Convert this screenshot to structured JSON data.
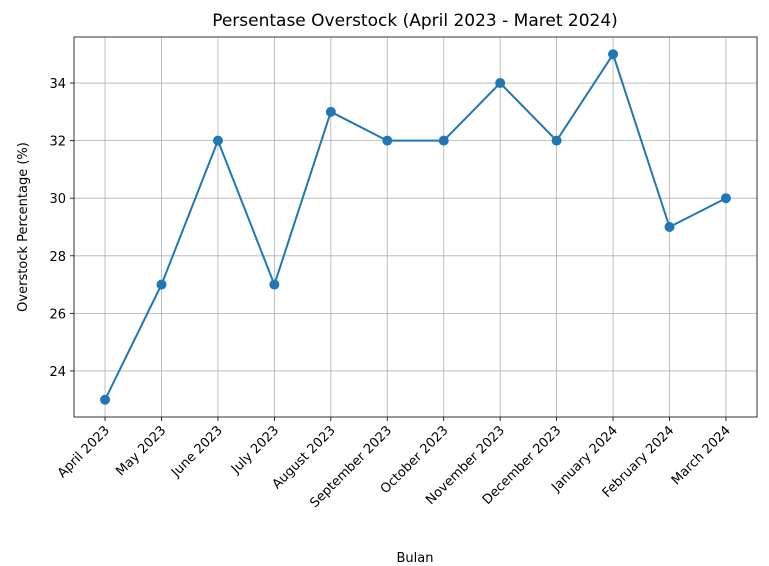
{
  "chart_data": {
    "type": "line",
    "title": "Persentase Overstock (April 2023 - Maret 2024)",
    "x_label": "Bulan",
    "y_label": "Overstock Percentage (%)",
    "categories": [
      "April 2023",
      "May 2023",
      "June 2023",
      "July 2023",
      "August 2023",
      "September 2023",
      "October 2023",
      "November 2023",
      "December 2023",
      "January 2024",
      "February 2024",
      "March 2024"
    ],
    "series": [
      {
        "name": "Overstock",
        "color": "#1f77b4",
        "values": [
          23,
          27,
          32,
          27,
          33,
          32,
          32,
          34,
          32,
          35,
          29,
          30
        ]
      }
    ],
    "ylim": [
      22.4,
      35.6
    ],
    "yticks": [
      24,
      26,
      28,
      30,
      32,
      34
    ],
    "grid": true
  }
}
